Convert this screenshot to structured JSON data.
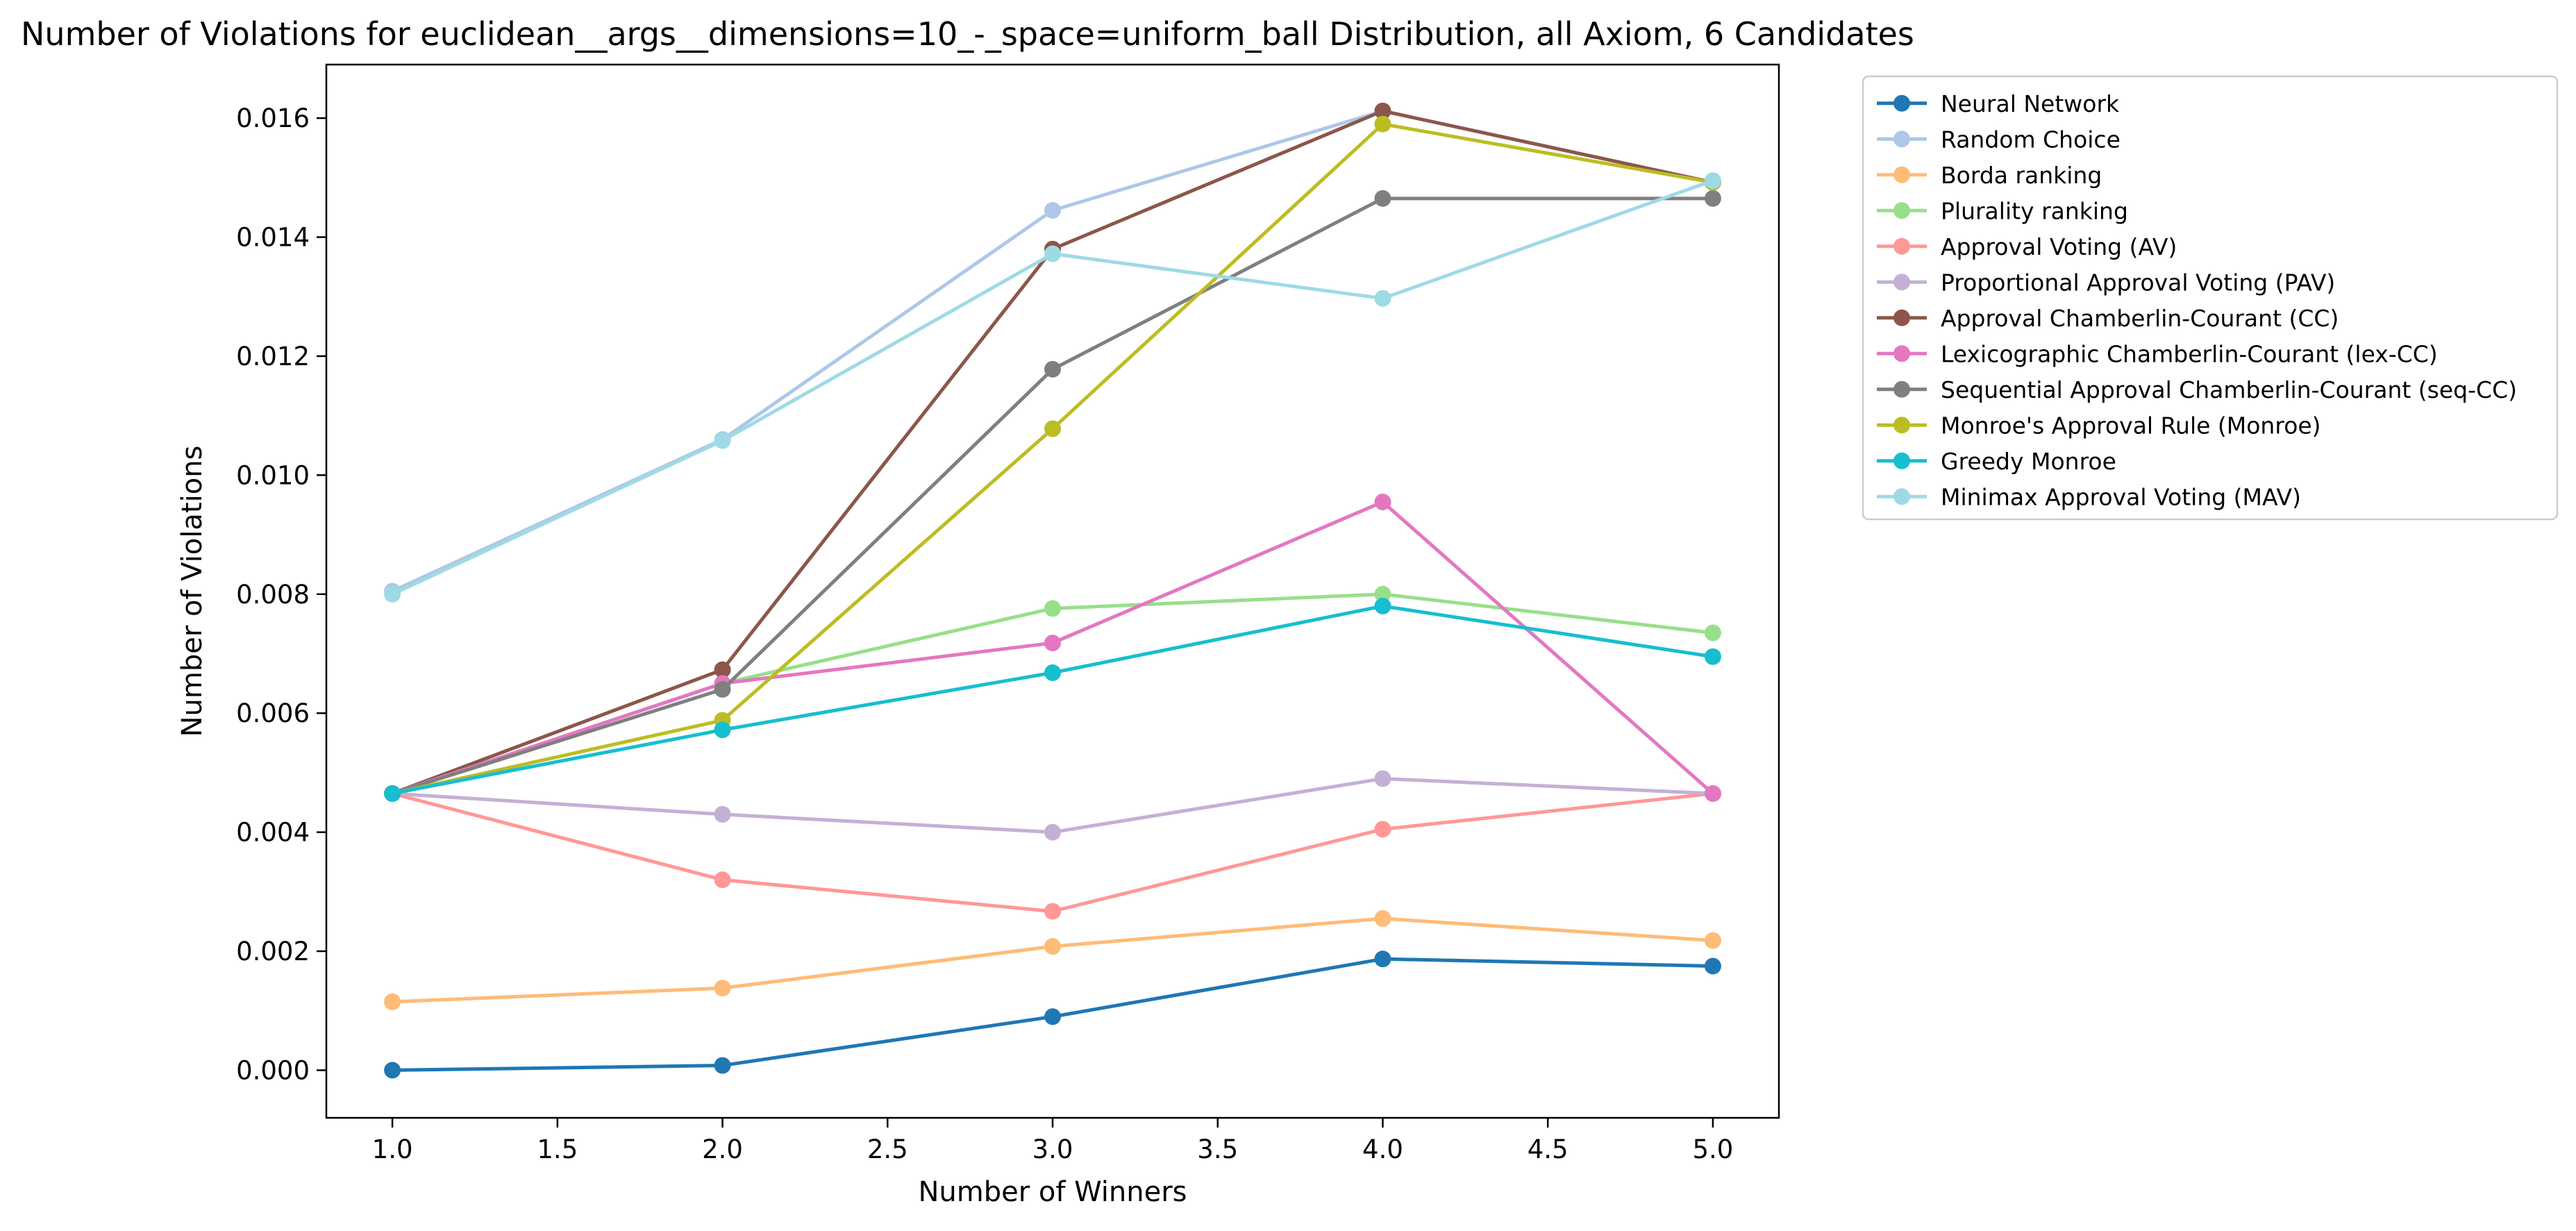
{
  "chart_data": {
    "type": "line",
    "title": "Number of Violations for euclidean__args__dimensions=10_-_space=uniform_ball Distribution, all Axiom, 6 Candidates",
    "xlabel": "Number of Winners",
    "ylabel": "Number of Violations",
    "xlim": [
      0.8,
      5.2
    ],
    "ylim": [
      -0.0008,
      0.0169
    ],
    "xticks": [
      "1.0",
      "1.5",
      "2.0",
      "2.5",
      "3.0",
      "3.5",
      "4.0",
      "4.5",
      "5.0"
    ],
    "yticks": [
      "0.000",
      "0.002",
      "0.004",
      "0.006",
      "0.008",
      "0.010",
      "0.012",
      "0.014",
      "0.016"
    ],
    "grid": false,
    "legend_position": "outside-top-right",
    "x": [
      1,
      2,
      3,
      4,
      5
    ],
    "series": [
      {
        "name": "Neural Network",
        "color": "#1f77b4",
        "values": [
          0.0,
          8e-05,
          0.0009,
          0.00187,
          0.00175
        ]
      },
      {
        "name": "Random Choice",
        "color": "#aec7e8",
        "values": [
          0.00805,
          0.0106,
          0.01445,
          0.01612,
          0.01492
        ]
      },
      {
        "name": "Borda ranking",
        "color": "#ffbb78",
        "values": [
          0.00115,
          0.00138,
          0.00208,
          0.00255,
          0.00218
        ]
      },
      {
        "name": "Plurality ranking",
        "color": "#98df8a",
        "values": [
          0.00465,
          0.0065,
          0.00776,
          0.008,
          0.00735
        ]
      },
      {
        "name": "Approval Voting (AV)",
        "color": "#ff9896",
        "values": [
          0.00465,
          0.0032,
          0.00267,
          0.00405,
          0.00465
        ]
      },
      {
        "name": "Proportional Approval Voting (PAV)",
        "color": "#c5b0d5",
        "values": [
          0.00465,
          0.0043,
          0.004,
          0.0049,
          0.00465
        ]
      },
      {
        "name": "Approval Chamberlin-Courant (CC)",
        "color": "#8c564b",
        "values": [
          0.00465,
          0.00673,
          0.0138,
          0.01612,
          0.01492
        ]
      },
      {
        "name": "Lexicographic Chamberlin-Courant (lex-CC)",
        "color": "#e377c2",
        "values": [
          0.00465,
          0.0065,
          0.00718,
          0.00955,
          0.00465
        ]
      },
      {
        "name": "Sequential Approval Chamberlin-Courant (seq-CC)",
        "color": "#7f7f7f",
        "values": [
          0.00465,
          0.0064,
          0.01178,
          0.01465,
          0.01465
        ]
      },
      {
        "name": "Monroe's Approval Rule (Monroe)",
        "color": "#bcbd22",
        "values": [
          0.00465,
          0.00588,
          0.01078,
          0.0159,
          0.01492
        ]
      },
      {
        "name": "Greedy Monroe",
        "color": "#17becf",
        "values": [
          0.00465,
          0.00572,
          0.00668,
          0.0078,
          0.00695
        ]
      },
      {
        "name": "Minimax Approval Voting (MAV)",
        "color": "#9edae5",
        "values": [
          0.008,
          0.01058,
          0.01372,
          0.01297,
          0.01495
        ]
      }
    ]
  }
}
